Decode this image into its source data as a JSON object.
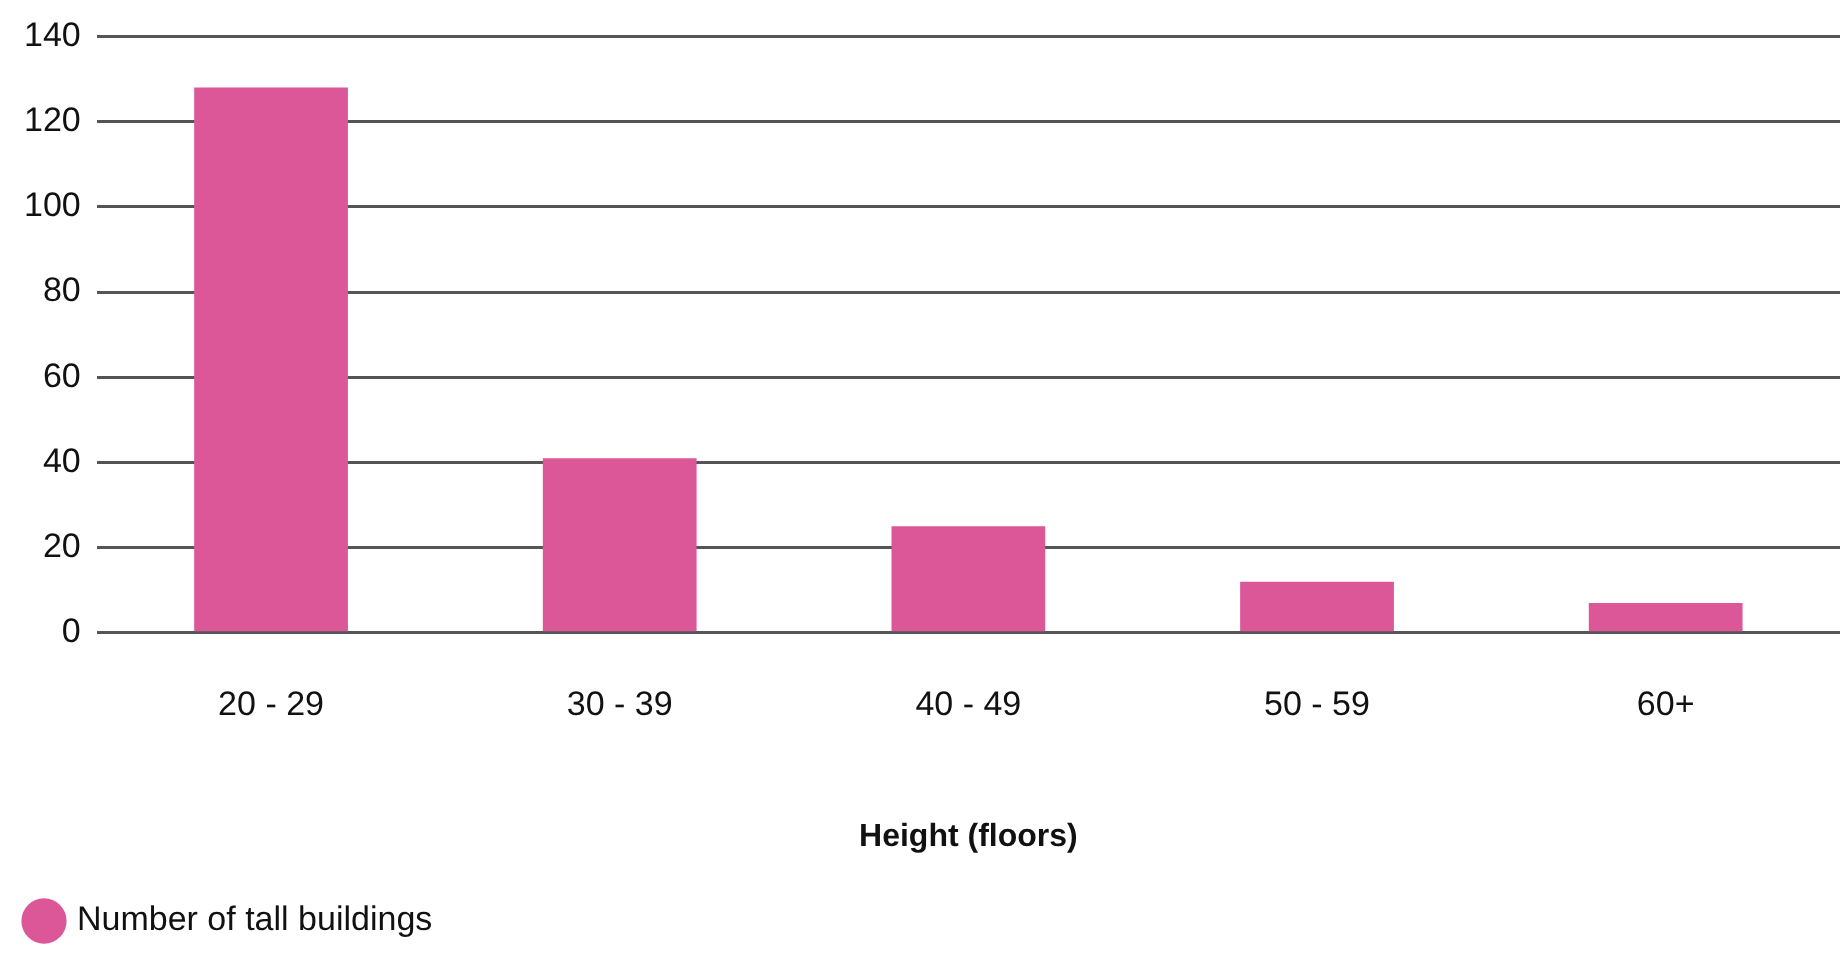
{
  "chart_data": {
    "type": "bar",
    "xlabel": "Height (floors)",
    "categories": [
      "20 - 29",
      "30 - 39",
      "40 - 49",
      "50 - 59",
      "60+"
    ],
    "series": [
      {
        "name": "Number of tall buildings",
        "color": "#dc5798",
        "values": [
          128,
          41,
          25,
          12,
          7
        ]
      }
    ],
    "ylim": [
      0,
      140
    ],
    "yticks": [
      0,
      20,
      40,
      60,
      80,
      100,
      120,
      140
    ],
    "grid": "y",
    "legend": "bottom left"
  }
}
